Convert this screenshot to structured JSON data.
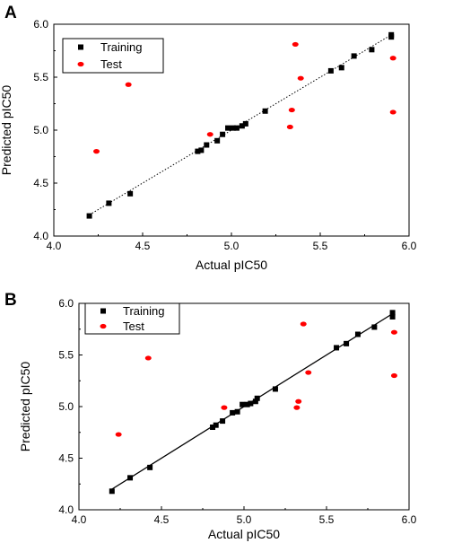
{
  "chart_data": [
    {
      "type": "scatter",
      "panel": "A",
      "xlabel": "Actual pIC50",
      "ylabel": "Predicted pIC50",
      "xlim": [
        4.0,
        6.0
      ],
      "ylim": [
        4.0,
        6.0
      ],
      "xticks": [
        "4.0",
        "4.5",
        "5.0",
        "5.5",
        "6.0"
      ],
      "yticks": [
        "4.0",
        "4.5",
        "5.0",
        "5.5",
        "6.0"
      ],
      "grid": false,
      "legend_position": "top-left",
      "fit_line": {
        "style": "dotted",
        "from": [
          4.2,
          4.2
        ],
        "to": [
          5.9,
          5.9
        ]
      },
      "series": [
        {
          "name": "Training",
          "marker": "square",
          "color": "#000000",
          "points": [
            [
              4.2,
              4.19
            ],
            [
              4.31,
              4.31
            ],
            [
              4.43,
              4.4
            ],
            [
              4.81,
              4.8
            ],
            [
              4.83,
              4.81
            ],
            [
              4.86,
              4.86
            ],
            [
              4.92,
              4.9
            ],
            [
              4.95,
              4.96
            ],
            [
              4.98,
              5.02
            ],
            [
              5.01,
              5.02
            ],
            [
              5.03,
              5.02
            ],
            [
              5.06,
              5.04
            ],
            [
              5.08,
              5.06
            ],
            [
              5.19,
              5.18
            ],
            [
              5.56,
              5.56
            ],
            [
              5.62,
              5.59
            ],
            [
              5.69,
              5.7
            ],
            [
              5.79,
              5.76
            ],
            [
              5.9,
              5.88
            ],
            [
              5.9,
              5.9
            ]
          ]
        },
        {
          "name": "Test",
          "marker": "circle",
          "color": "#ff0000",
          "points": [
            [
              4.24,
              4.8
            ],
            [
              4.42,
              5.43
            ],
            [
              4.88,
              4.96
            ],
            [
              5.33,
              5.03
            ],
            [
              5.34,
              5.19
            ],
            [
              5.36,
              5.81
            ],
            [
              5.39,
              5.49
            ],
            [
              5.91,
              5.68
            ],
            [
              5.91,
              5.17
            ]
          ]
        }
      ]
    },
    {
      "type": "scatter",
      "panel": "B",
      "xlabel": "Actual pIC50",
      "ylabel": "Predicted pIC50",
      "xlim": [
        4.0,
        6.0
      ],
      "ylim": [
        4.0,
        6.0
      ],
      "xticks": [
        "4.0",
        "4.5",
        "5.0",
        "5.5",
        "6.0"
      ],
      "yticks": [
        "4.0",
        "4.5",
        "5.0",
        "5.5",
        "6.0"
      ],
      "grid": false,
      "legend_position": "top-left",
      "fit_line": {
        "style": "solid",
        "from": [
          4.2,
          4.2
        ],
        "to": [
          5.9,
          5.9
        ]
      },
      "series": [
        {
          "name": "Training",
          "marker": "square",
          "color": "#000000",
          "points": [
            [
              4.2,
              4.18
            ],
            [
              4.31,
              4.31
            ],
            [
              4.43,
              4.41
            ],
            [
              4.81,
              4.8
            ],
            [
              4.83,
              4.82
            ],
            [
              4.87,
              4.86
            ],
            [
              4.93,
              4.94
            ],
            [
              4.96,
              4.95
            ],
            [
              4.99,
              5.02
            ],
            [
              5.02,
              5.02
            ],
            [
              5.04,
              5.03
            ],
            [
              5.07,
              5.05
            ],
            [
              5.08,
              5.08
            ],
            [
              5.19,
              5.17
            ],
            [
              5.56,
              5.57
            ],
            [
              5.62,
              5.61
            ],
            [
              5.69,
              5.7
            ],
            [
              5.79,
              5.77
            ],
            [
              5.9,
              5.87
            ],
            [
              5.9,
              5.91
            ]
          ]
        },
        {
          "name": "Test",
          "marker": "circle",
          "color": "#ff0000",
          "points": [
            [
              4.24,
              4.73
            ],
            [
              4.42,
              5.47
            ],
            [
              4.88,
              4.99
            ],
            [
              5.32,
              4.99
            ],
            [
              5.33,
              5.05
            ],
            [
              5.36,
              5.8
            ],
            [
              5.39,
              5.33
            ],
            [
              5.91,
              5.72
            ],
            [
              5.91,
              5.3
            ]
          ]
        }
      ]
    }
  ]
}
